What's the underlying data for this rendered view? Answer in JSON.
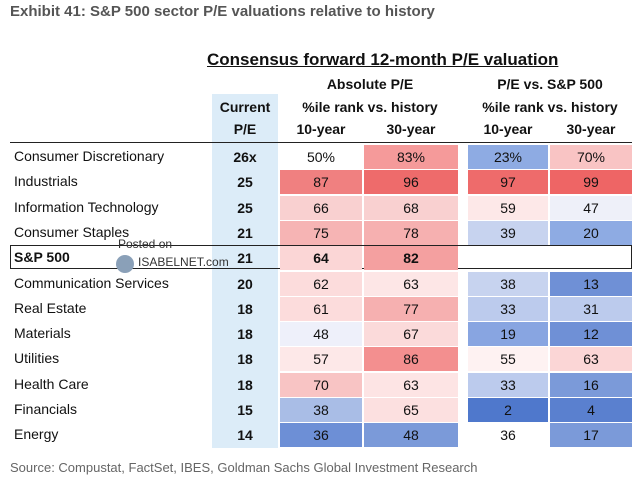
{
  "header": {
    "title": "Exhibit 41: S&P 500 sector P/E valuations relative to history",
    "table_title": "Consensus forward 12-month P/E valuation"
  },
  "table": {
    "group_headers": [
      "Absolute P/E",
      "P/E vs. S&P 500"
    ],
    "current_header": [
      "Current",
      "P/E"
    ],
    "sub_headers": [
      "%ile rank vs. history",
      "%ile rank vs. history"
    ],
    "columns": [
      "10-year",
      "30-year",
      "10-year",
      "30-year"
    ],
    "rows": [
      [
        "Consumer Discretionary",
        "26x",
        "50%",
        "83%",
        "23%",
        "70%"
      ],
      [
        "Industrials",
        "25",
        "87",
        "96",
        "97",
        "99"
      ],
      [
        "Information Technology",
        "25",
        "66",
        "68",
        "59",
        "47"
      ],
      [
        "Consumer Staples",
        "21",
        "75",
        "78",
        "39",
        "20"
      ],
      [
        "S&P 500",
        "21",
        "64",
        "82"
      ],
      [
        "Communication Services",
        "20",
        "62",
        "63",
        "38",
        "13"
      ],
      [
        "Real Estate",
        "18",
        "61",
        "77",
        "33",
        "31"
      ],
      [
        "Materials",
        "18",
        "48",
        "67",
        "19",
        "12"
      ],
      [
        "Utilities",
        "18",
        "57",
        "86",
        "55",
        "63"
      ],
      [
        "Health Care",
        "18",
        "70",
        "63",
        "33",
        "16"
      ],
      [
        "Financials",
        "15",
        "38",
        "65",
        "2",
        "4"
      ],
      [
        "Energy",
        "14",
        "36",
        "48",
        "36",
        "17"
      ]
    ]
  },
  "watermark": [
    "Posted on",
    "ISABELNET.com"
  ],
  "footer": {
    "source": "Source: Compustat, FactSet, IBES, Goldman Sachs Global Investment Research"
  }
}
